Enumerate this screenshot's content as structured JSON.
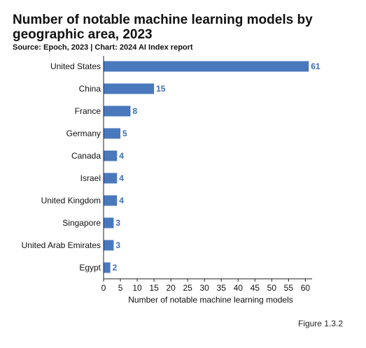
{
  "header": {
    "title": "Number of notable machine learning models by geographic area, 2023",
    "source": "Source: Epoch, 2023 | Chart: 2024 AI Index report"
  },
  "footer": {
    "figure_label": "Figure 1.3.2"
  },
  "colors": {
    "bar": "#4a78bd",
    "value_label": "#3c6fb7",
    "axis": "#222222"
  },
  "chart_data": {
    "type": "bar",
    "orientation": "horizontal",
    "title": "Number of notable machine learning models by geographic area, 2023",
    "xlabel": "Number of notable machine learning models",
    "ylabel": "",
    "categories": [
      "United States",
      "China",
      "France",
      "Germany",
      "Canada",
      "Israel",
      "United Kingdom",
      "Singapore",
      "United Arab Emirates",
      "Egypt"
    ],
    "values": [
      61,
      15,
      8,
      5,
      4,
      4,
      4,
      3,
      3,
      2
    ],
    "xlim": [
      0,
      62
    ],
    "xticks": [
      0,
      5,
      10,
      15,
      20,
      25,
      30,
      35,
      40,
      45,
      50,
      55,
      60
    ],
    "grid": false,
    "legend": "none"
  }
}
